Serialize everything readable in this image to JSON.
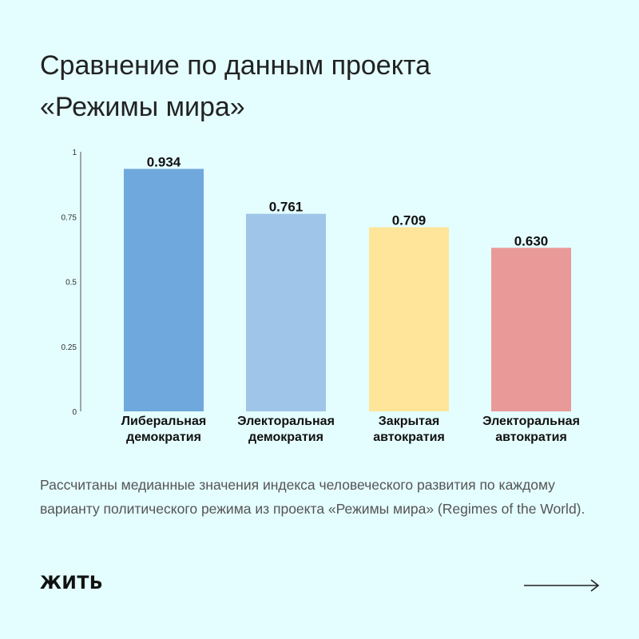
{
  "title_lines": [
    "Сравнение по данным проекта",
    "«Режимы мира»"
  ],
  "chart_data": {
    "type": "bar",
    "categories": [
      [
        "Либеральная",
        "демократия"
      ],
      [
        "Электоральная",
        "демократия"
      ],
      [
        "Закрытая",
        "автократия"
      ],
      [
        "Электоральная",
        "автократия"
      ]
    ],
    "values": [
      0.934,
      0.761,
      0.709,
      0.63
    ],
    "value_labels": [
      "0.934",
      "0.761",
      "0.709",
      "0.630"
    ],
    "colors": [
      "#6fa8dc",
      "#9fc5e8",
      "#ffe599",
      "#ea9999"
    ],
    "ylim": [
      0,
      1
    ],
    "yticks": [
      0,
      0.25,
      0.5,
      0.75,
      1
    ],
    "ytick_labels": [
      "0",
      "0.25",
      "0.5",
      "0.75",
      "1"
    ],
    "grid": false
  },
  "caption": "Рассчитаны медианные значения индекса человеческого развития по каждому варианту политического режима из проекта «Режимы мира» (Regimes of the World).",
  "logo_text": "ЖИТЬ",
  "next_icon": "arrow-right-icon"
}
